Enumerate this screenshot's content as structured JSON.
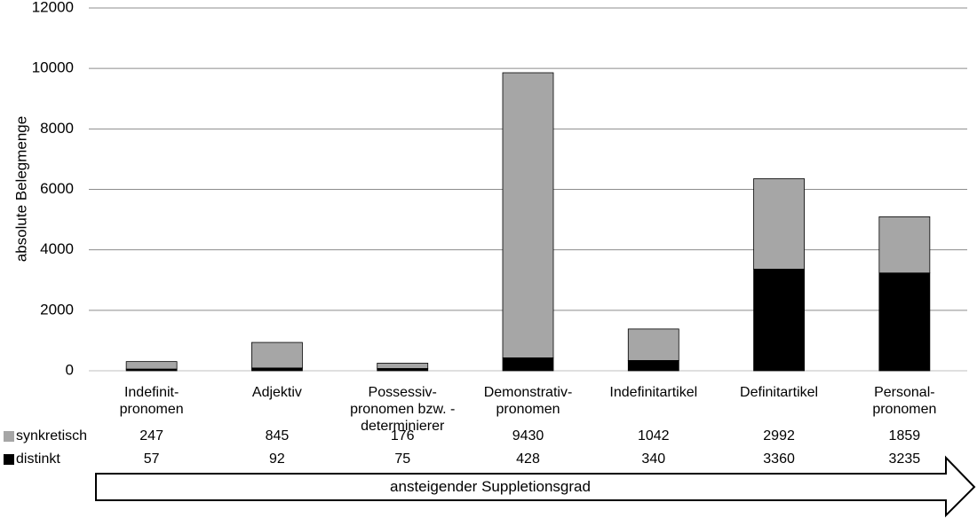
{
  "chart_data": {
    "type": "bar",
    "stacked": true,
    "ylabel": "absolute Belegmenge",
    "ylim": [
      0,
      12000
    ],
    "yticks": [
      0,
      2000,
      4000,
      6000,
      8000,
      10000,
      12000
    ],
    "grid": true,
    "categories": [
      [
        "Indefinit-",
        "pronomen"
      ],
      [
        "Adjektiv"
      ],
      [
        "Possessiv-",
        "pronomen bzw. -",
        "determinierer"
      ],
      [
        "Demonstrativ-",
        "pronomen"
      ],
      [
        "Indefinitartikel"
      ],
      [
        "Definitartikel"
      ],
      [
        "Personal-",
        "pronomen"
      ]
    ],
    "series": [
      {
        "name": "distinkt",
        "color": "#000000",
        "values": [
          57,
          92,
          75,
          428,
          340,
          3360,
          3235
        ]
      },
      {
        "name": "synkretisch",
        "color": "#a6a6a6",
        "values": [
          247,
          845,
          176,
          9430,
          1042,
          2992,
          1859
        ]
      }
    ],
    "table": {
      "rows": [
        {
          "label": "synkretisch",
          "series": "synkretisch"
        },
        {
          "label": "distinkt",
          "series": "distinkt"
        }
      ]
    }
  },
  "arrow": {
    "label": "ansteigender Suppletionsgrad"
  }
}
